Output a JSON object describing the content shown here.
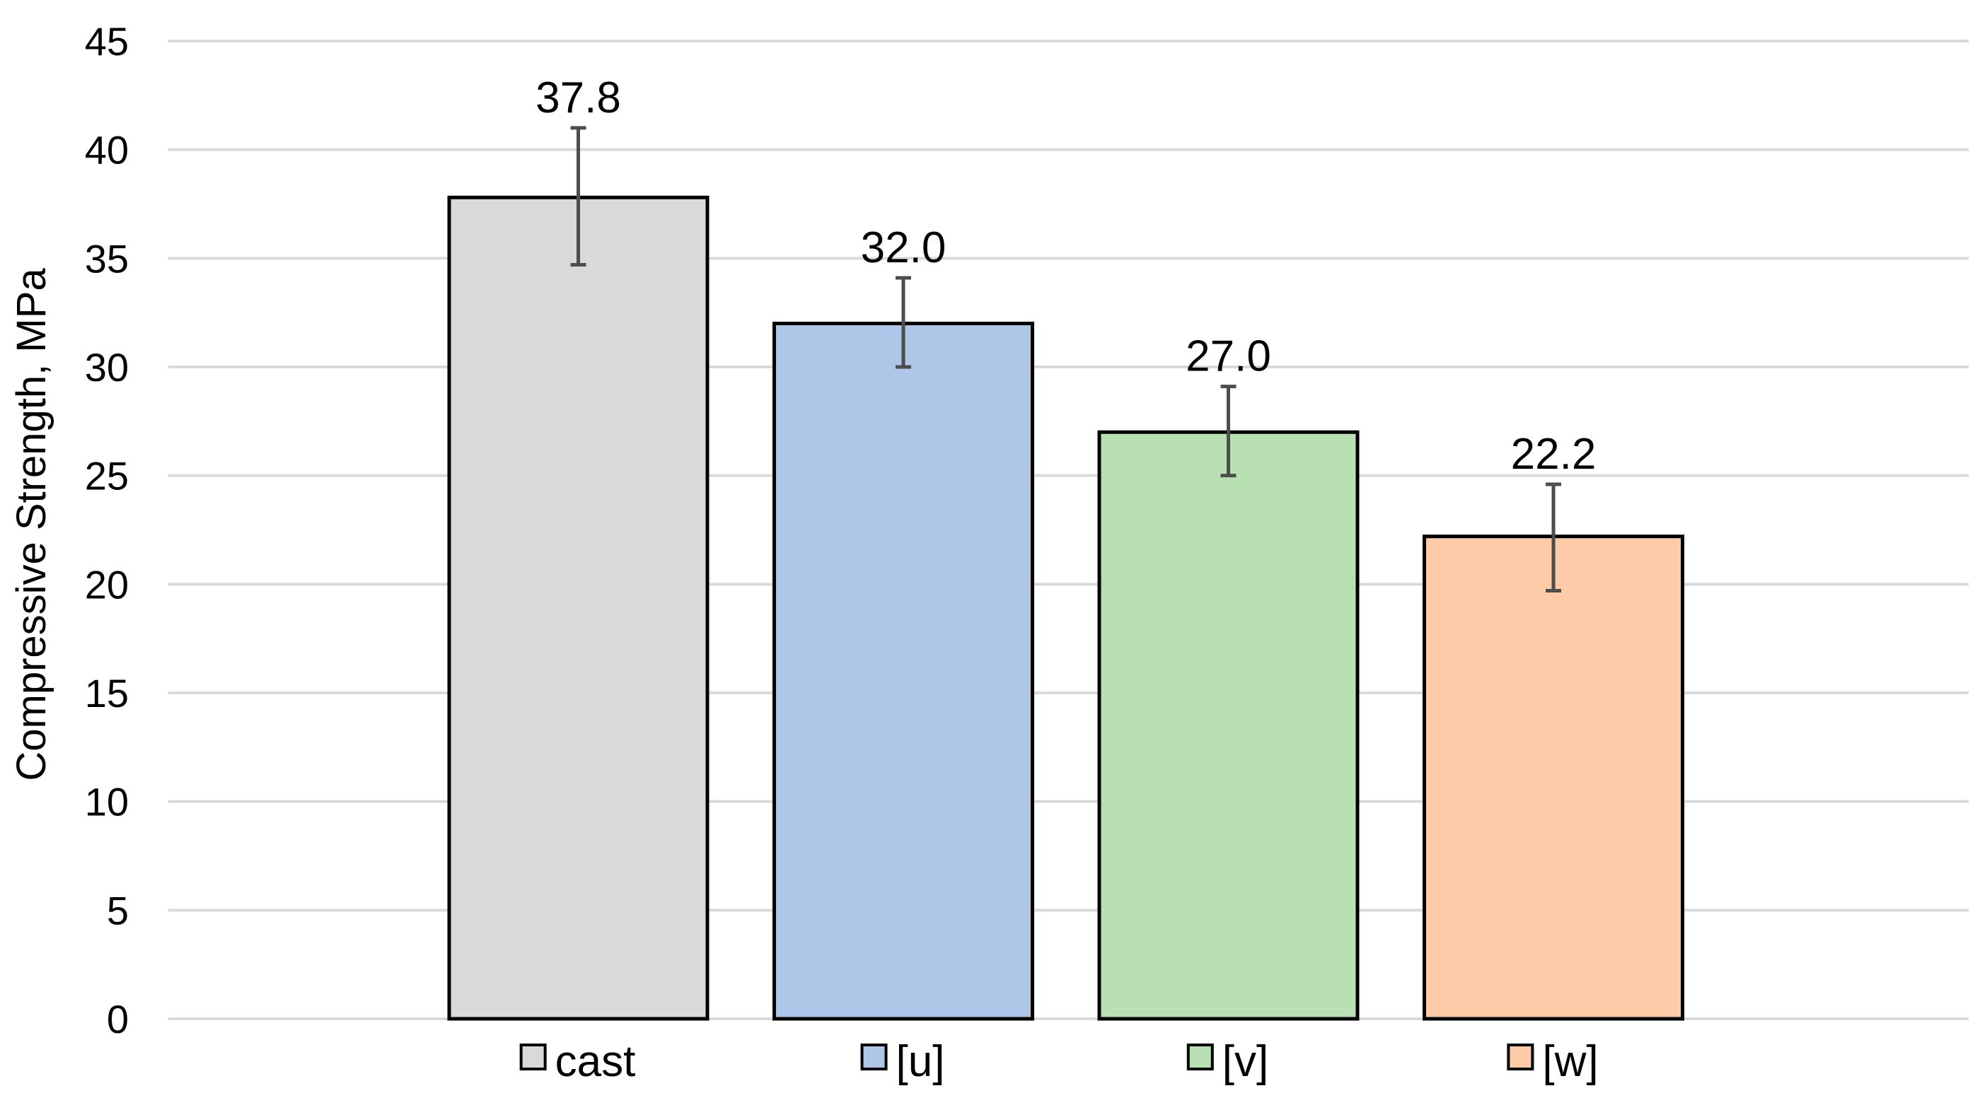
{
  "chart_data": {
    "type": "bar",
    "title": "",
    "xlabel": "",
    "ylabel": "Compressive Strength, MPa",
    "ylim": [
      0,
      45
    ],
    "yticks": [
      0,
      5,
      10,
      15,
      20,
      25,
      30,
      35,
      40,
      45
    ],
    "grid": true,
    "legend_position": "bottom",
    "categories": [
      "cast",
      "[u]",
      "[v]",
      "[w]"
    ],
    "values": [
      37.8,
      32.0,
      27.0,
      22.2
    ],
    "value_labels": [
      "37.8",
      "32.0",
      "27.0",
      "22.2"
    ],
    "error_low": [
      34.7,
      30.0,
      25.0,
      19.7
    ],
    "error_high": [
      41.0,
      34.1,
      29.1,
      24.6
    ],
    "colors": [
      "#d9d9d9",
      "#aec7e8",
      "#b9e0b2",
      "#fdcba8"
    ]
  }
}
